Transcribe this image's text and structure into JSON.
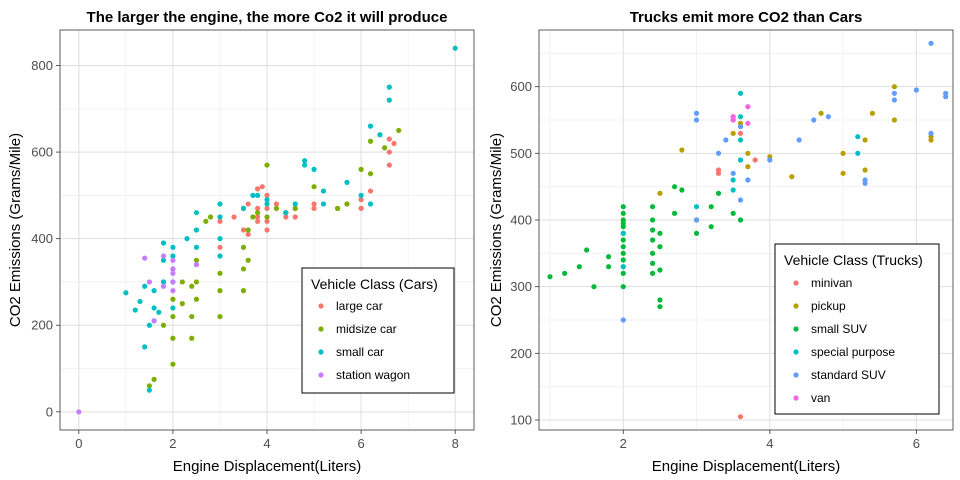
{
  "chart_data": [
    {
      "type": "scatter",
      "title": "The larger the engine, the more Co2 it will produce",
      "xlabel": "Engine Displacement(Liters)",
      "ylabel": "CO2 Emissions (Grams/Mile)",
      "xlim": [
        -0.4,
        8.4
      ],
      "ylim": [
        -42,
        882
      ],
      "xticks": [
        0,
        2,
        4,
        6,
        8
      ],
      "yticks": [
        0,
        200,
        400,
        600,
        800
      ],
      "grid": true,
      "legend": {
        "title": "Vehicle Class (Cars)",
        "placement": "bottom-right"
      },
      "series": [
        {
          "name": "large car",
          "color": "#F8766D",
          "x": [
            3.0,
            3.0,
            3.3,
            3.5,
            3.5,
            3.6,
            3.6,
            3.8,
            3.8,
            3.8,
            3.8,
            3.9,
            4.0,
            4.0,
            4.0,
            4.0,
            4.2,
            4.4,
            4.4,
            4.6,
            4.6,
            5.0,
            5.0,
            5.5,
            5.7,
            6.0,
            6.0,
            6.2,
            6.6,
            6.6,
            6.6,
            6.7
          ],
          "y": [
            380,
            440,
            450,
            420,
            470,
            410,
            480,
            440,
            450,
            470,
            515,
            520,
            420,
            440,
            470,
            500,
            480,
            450,
            460,
            450,
            470,
            470,
            480,
            470,
            480,
            470,
            490,
            510,
            570,
            600,
            630,
            620
          ]
        },
        {
          "name": "midsize car",
          "color": "#7CAE00",
          "x": [
            1.5,
            1.6,
            1.8,
            1.8,
            2.0,
            2.0,
            2.0,
            2.0,
            2.0,
            2.2,
            2.2,
            2.4,
            2.4,
            2.4,
            2.5,
            2.5,
            2.5,
            2.7,
            2.8,
            3.0,
            3.0,
            3.0,
            3.5,
            3.5,
            3.5,
            3.6,
            3.6,
            3.7,
            3.8,
            4.0,
            4.0,
            4.2,
            4.4,
            4.6,
            5.0,
            5.5,
            5.7,
            6.0,
            6.2,
            6.2,
            6.5,
            6.8
          ],
          "y": [
            60,
            75,
            200,
            300,
            110,
            170,
            220,
            260,
            330,
            250,
            300,
            170,
            220,
            290,
            260,
            300,
            350,
            440,
            450,
            220,
            280,
            320,
            280,
            330,
            380,
            350,
            420,
            450,
            460,
            450,
            570,
            470,
            460,
            470,
            520,
            470,
            480,
            560,
            550,
            625,
            610,
            650
          ]
        },
        {
          "name": "small car",
          "color": "#00BFC4",
          "x": [
            1.0,
            1.2,
            1.3,
            1.4,
            1.4,
            1.5,
            1.5,
            1.6,
            1.6,
            1.6,
            1.7,
            1.8,
            1.8,
            1.8,
            2.0,
            2.0,
            2.0,
            2.0,
            2.3,
            2.5,
            2.5,
            2.5,
            3.0,
            3.0,
            3.0,
            3.0,
            3.5,
            3.7,
            3.8,
            4.0,
            4.0,
            4.4,
            4.6,
            4.8,
            4.8,
            5.0,
            5.2,
            5.2,
            5.7,
            6.0,
            6.2,
            6.2,
            6.4,
            6.6,
            6.6,
            8.0
          ],
          "y": [
            275,
            235,
            255,
            290,
            150,
            50,
            200,
            210,
            240,
            280,
            230,
            300,
            350,
            390,
            380,
            300,
            360,
            240,
            400,
            420,
            460,
            380,
            360,
            400,
            480,
            450,
            470,
            500,
            500,
            480,
            490,
            460,
            480,
            570,
            580,
            560,
            510,
            480,
            530,
            500,
            480,
            660,
            640,
            720,
            750,
            840
          ]
        },
        {
          "name": "station wagon",
          "color": "#C77CFF",
          "x": [
            0.0,
            1.4,
            1.5,
            1.6,
            1.8,
            1.8,
            2.0,
            2.0,
            2.0,
            2.0,
            2.0,
            2.5
          ],
          "y": [
            0,
            355,
            300,
            210,
            290,
            360,
            280,
            300,
            320,
            330,
            350,
            340
          ]
        }
      ]
    },
    {
      "type": "scatter",
      "title": "Trucks emit more CO2 than Cars",
      "xlabel": "Engine Displacement(Liters)",
      "ylabel": "CO2 Emissions (Grams/Mile)",
      "xlim": [
        0.85,
        6.5
      ],
      "ylim": [
        85,
        685
      ],
      "xticks": [
        2,
        4,
        6
      ],
      "yticks": [
        100,
        200,
        300,
        400,
        500,
        600
      ],
      "grid": true,
      "legend": {
        "title": "Vehicle Class (Trucks)",
        "placement": "bottom-right"
      },
      "series": [
        {
          "name": "minivan",
          "color": "#F8766D",
          "x": [
            3.3,
            3.3,
            3.5,
            3.6,
            3.6,
            3.8
          ],
          "y": [
            470,
            475,
            555,
            105,
            530,
            490
          ]
        },
        {
          "name": "pickup",
          "color": "#B79F00",
          "x": [
            2.5,
            2.8,
            3.5,
            3.6,
            3.7,
            3.7,
            4.0,
            4.3,
            4.7,
            5.0,
            5.0,
            5.3,
            5.3,
            5.4,
            5.7,
            5.7,
            6.2,
            6.2
          ],
          "y": [
            440,
            505,
            530,
            545,
            500,
            480,
            495,
            465,
            560,
            470,
            500,
            475,
            520,
            560,
            550,
            600,
            520,
            525
          ]
        },
        {
          "name": "small SUV",
          "color": "#00BA38",
          "x": [
            1.0,
            1.2,
            1.4,
            1.5,
            1.6,
            1.8,
            1.8,
            2.0,
            2.0,
            2.0,
            2.0,
            2.0,
            2.0,
            2.0,
            2.0,
            2.0,
            2.0,
            2.0,
            2.0,
            2.0,
            2.4,
            2.4,
            2.4,
            2.4,
            2.4,
            2.4,
            2.4,
            2.5,
            2.5,
            2.5,
            2.5,
            2.5,
            2.7,
            2.7,
            2.8,
            3.0,
            3.0,
            3.2,
            3.2,
            3.3,
            3.5,
            3.6
          ],
          "y": [
            315,
            320,
            330,
            355,
            300,
            330,
            345,
            300,
            330,
            360,
            380,
            390,
            400,
            410,
            420,
            395,
            370,
            350,
            340,
            320,
            320,
            335,
            350,
            370,
            385,
            400,
            420,
            380,
            360,
            325,
            280,
            270,
            410,
            450,
            445,
            400,
            380,
            420,
            390,
            440,
            410,
            400
          ]
        },
        {
          "name": "special purpose",
          "color": "#00BFC4",
          "x": [
            2.0,
            2.0,
            3.0,
            3.5,
            3.5,
            3.6,
            3.6,
            3.6,
            3.6,
            5.2,
            5.2
          ],
          "y": [
            380,
            330,
            420,
            445,
            460,
            490,
            520,
            555,
            590,
            500,
            525
          ]
        },
        {
          "name": "standard SUV",
          "color": "#619CFF",
          "x": [
            2.0,
            3.0,
            3.0,
            3.0,
            3.3,
            3.4,
            3.5,
            3.5,
            3.6,
            3.6,
            3.7,
            4.0,
            4.4,
            4.6,
            4.8,
            5.3,
            5.3,
            5.7,
            5.7,
            6.0,
            6.2,
            6.2,
            6.4,
            6.4
          ],
          "y": [
            250,
            400,
            550,
            560,
            500,
            520,
            550,
            470,
            430,
            540,
            460,
            490,
            520,
            550,
            555,
            455,
            460,
            580,
            590,
            595,
            530,
            665,
            590,
            585
          ]
        },
        {
          "name": "van",
          "color": "#F564E3",
          "x": [
            3.5,
            3.5,
            3.7,
            3.7
          ],
          "y": [
            550,
            555,
            545,
            570
          ]
        }
      ]
    }
  ]
}
